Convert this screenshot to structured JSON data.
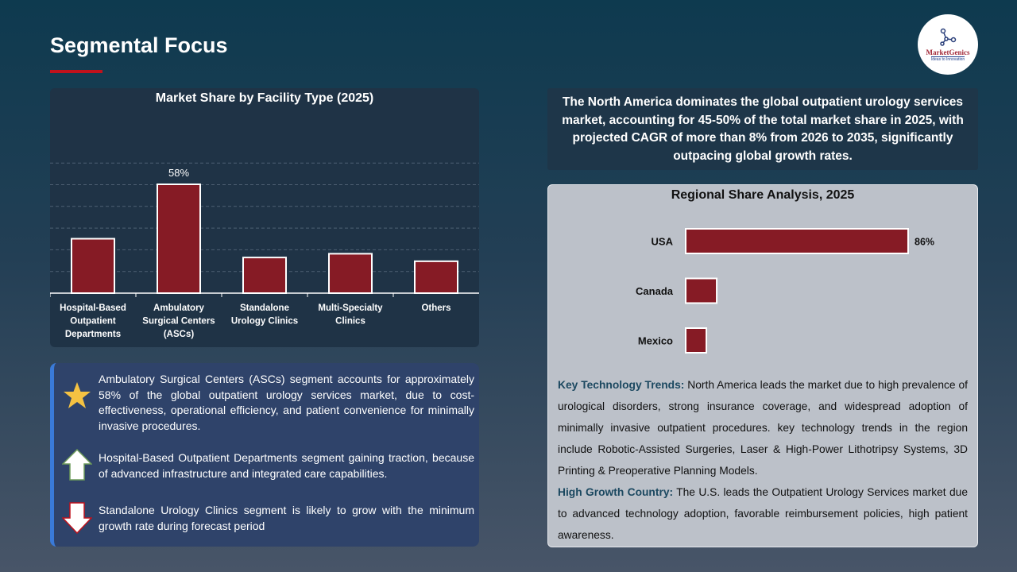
{
  "header": {
    "title": "Segmental Focus"
  },
  "logo": {
    "name": "MarketGenics",
    "tagline": "Ideas to Innovation"
  },
  "colors": {
    "bar": "#861b25",
    "accent": "#c0121c",
    "heading_blue": "#1b4860"
  },
  "summary": "The North America dominates the global outpatient urology services market, accounting for 45-50% of the total market share in 2025, with projected CAGR of more than 8% from 2026 to 2035, significantly outpacing global growth rates.",
  "chart_data": [
    {
      "type": "bar",
      "title": "Market Share by Facility Type (2025)",
      "categories": [
        "Hospital-Based Outpatient Departments",
        "Ambulatory Surgical Centers (ASCs)",
        "Standalone Urology Clinics",
        "Multi-Specialty Clinics",
        "Others"
      ],
      "values": [
        29,
        58,
        19,
        21,
        17
      ],
      "data_labels": [
        "",
        "58%",
        "",
        "",
        ""
      ],
      "ylim": [
        0,
        70
      ],
      "grid": true,
      "unit": "%"
    },
    {
      "type": "bar",
      "orientation": "horizontal",
      "title": "Regional Share Analysis, 2025",
      "categories": [
        "USA",
        "Canada",
        "Mexico"
      ],
      "values": [
        86,
        12,
        8
      ],
      "data_labels": [
        "86%",
        "",
        ""
      ],
      "xlim": [
        0,
        100
      ],
      "grid": false,
      "unit": "%"
    }
  ],
  "insights": [
    {
      "icon": "star-icon",
      "text": "Ambulatory Surgical Centers (ASCs) segment accounts for approximately 58% of the global outpatient urology services market, due to cost-effectiveness, operational efficiency, and patient convenience for minimally invasive procedures."
    },
    {
      "icon": "arrow-up-icon",
      "text": "Hospital-Based Outpatient Departments segment gaining traction, because of advanced infrastructure and integrated care capabilities."
    },
    {
      "icon": "arrow-down-icon",
      "text": "Standalone Urology Clinics segment is likely to grow with the minimum growth rate during forecast period"
    }
  ],
  "trends": {
    "key_label": "Key Technology Trends:",
    "key_text": " North America leads the market due to high prevalence of urological disorders, strong insurance coverage, and widespread adoption of minimally invasive outpatient procedures. key technology trends in the region include Robotic-Assisted Surgeries, Laser & High-Power Lithotripsy Systems, 3D Printing & Preoperative Planning Models.",
    "growth_label": "High Growth Country:",
    "growth_text": " The U.S. leads the Outpatient Urology Services market due to advanced technology adoption, favorable reimbursement policies, high patient awareness."
  }
}
